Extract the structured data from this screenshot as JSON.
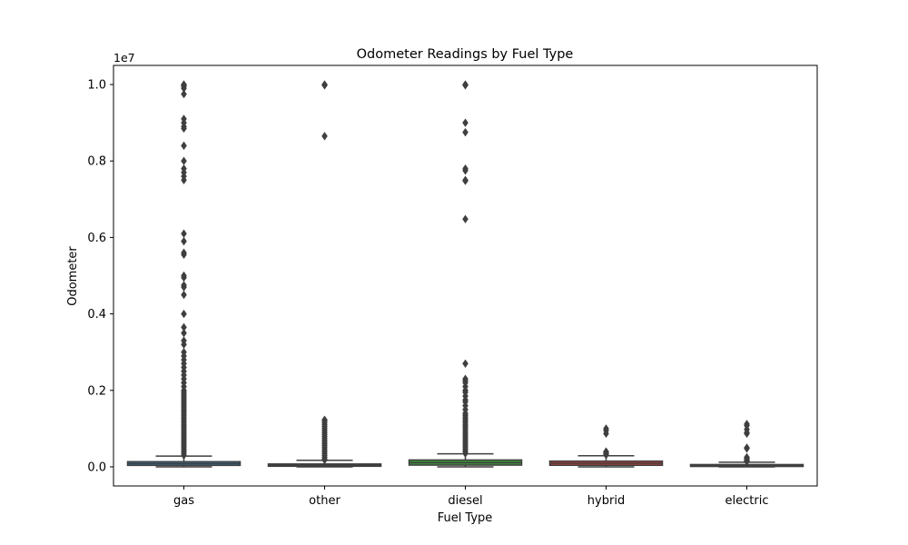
{
  "chart_data": {
    "type": "box",
    "title": "Odometer Readings by Fuel Type",
    "xlabel": "Fuel Type",
    "ylabel": "Odometer",
    "y_scale_label": "1e7",
    "y_scale": 10000000,
    "ylim": [
      -500000,
      10500000
    ],
    "yticks": [
      0,
      2000000,
      4000000,
      6000000,
      8000000,
      10000000
    ],
    "ytick_labels": [
      "0.0",
      "0.2",
      "0.4",
      "0.6",
      "0.8",
      "1.0"
    ],
    "grid": false,
    "categories": [
      "gas",
      "other",
      "diesel",
      "hybrid",
      "electric"
    ],
    "boxes": [
      {
        "category": "gas",
        "color": "#3274a1",
        "whisker_low": 0,
        "q1": 38000,
        "median": 85000,
        "q3": 135000,
        "whisker_high": 280000,
        "outliers": [
          10000000,
          9990000,
          9980000,
          9950000,
          9900000,
          9750000,
          9100000,
          9000000,
          8900000,
          8850000,
          8400000,
          8000000,
          7800000,
          7700000,
          7600000,
          7500000,
          6100000,
          5900000,
          5600000,
          5550000,
          5000000,
          4950000,
          4750000,
          4700000,
          4500000,
          4000000,
          3650000,
          3500000,
          3300000,
          3200000,
          3000000,
          2900000,
          2800000,
          2700000,
          2600000,
          2500000,
          2400000,
          2300000,
          2200000,
          2100000,
          2000000,
          1950000,
          1900000,
          1850000,
          1800000,
          1750000,
          1700000,
          1650000,
          1600000,
          1550000,
          1500000,
          1450000,
          1400000,
          1350000,
          1300000,
          1250000,
          1200000,
          1150000,
          1100000,
          1050000,
          1000000,
          950000,
          900000,
          850000,
          800000,
          750000,
          700000,
          650000,
          600000,
          550000,
          500000,
          450000,
          400000,
          350000,
          300000
        ]
      },
      {
        "category": "other",
        "color": "#e1812c",
        "whisker_low": 0,
        "q1": 15000,
        "median": 40000,
        "q3": 75000,
        "whisker_high": 170000,
        "outliers": [
          10000000,
          9990000,
          9980000,
          8650000,
          1230000,
          1200000,
          1150000,
          1100000,
          1050000,
          1000000,
          950000,
          900000,
          850000,
          800000,
          750000,
          700000,
          650000,
          600000,
          550000,
          500000,
          450000,
          400000,
          350000,
          300000,
          250000,
          200000,
          180000
        ]
      },
      {
        "category": "diesel",
        "color": "#3a923a",
        "whisker_low": 0,
        "q1": 45000,
        "median": 110000,
        "q3": 180000,
        "whisker_high": 340000,
        "outliers": [
          10000000,
          9990000,
          9980000,
          9000000,
          8750000,
          7800000,
          7750000,
          7500000,
          7480000,
          6480000,
          2700000,
          2300000,
          2250000,
          2200000,
          2100000,
          2000000,
          1950000,
          1850000,
          1750000,
          1700000,
          1600000,
          1500000,
          1400000,
          1350000,
          1300000,
          1250000,
          1200000,
          1150000,
          1100000,
          1050000,
          1000000,
          950000,
          900000,
          850000,
          800000,
          750000,
          700000,
          650000,
          600000,
          550000,
          500000,
          450000,
          400000,
          350000
        ]
      },
      {
        "category": "hybrid",
        "color": "#c03d3e",
        "whisker_low": 0,
        "q1": 40000,
        "median": 95000,
        "q3": 150000,
        "whisker_high": 290000,
        "outliers": [
          1000000,
          950000,
          870000,
          400000,
          370000,
          340000,
          310000
        ]
      },
      {
        "category": "electric",
        "color": "#9372b2",
        "whisker_low": 0,
        "q1": 10000,
        "median": 30000,
        "q3": 60000,
        "whisker_high": 120000,
        "outliers": [
          1120000,
          1080000,
          980000,
          900000,
          870000,
          500000,
          480000,
          250000,
          220000,
          190000,
          160000,
          140000
        ]
      }
    ]
  }
}
